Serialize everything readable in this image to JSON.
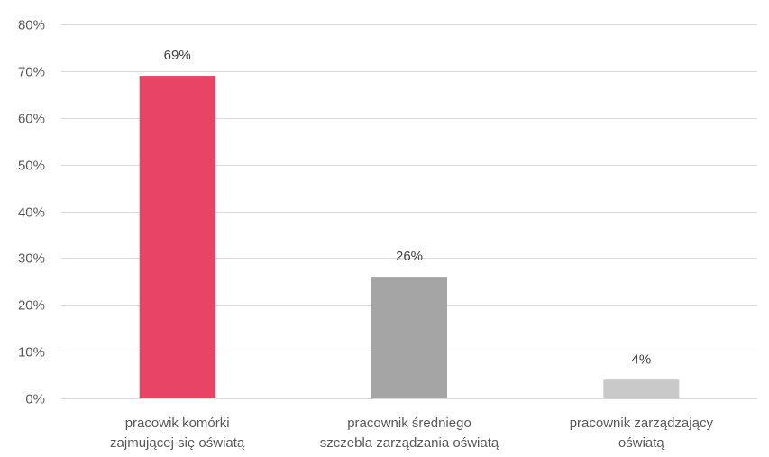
{
  "chart_data": {
    "type": "bar",
    "title": "",
    "xlabel": "",
    "ylabel": "",
    "categories": [
      [
        "pracowik komórki",
        "zajmującej się oświatą"
      ],
      [
        "pracownik średniego",
        "szczebla zarządzania oświatą"
      ],
      [
        "pracownik zarządzający",
        "oświatą"
      ]
    ],
    "values": [
      69,
      26,
      4
    ],
    "data_labels": [
      "69%",
      "26%",
      "4%"
    ],
    "colors": [
      "#e84466",
      "#a5a5a5",
      "#c9c9c9"
    ],
    "ylim": [
      0,
      80
    ],
    "y_ticks": [
      0,
      10,
      20,
      30,
      40,
      50,
      60,
      70,
      80
    ],
    "y_tick_labels": [
      "0%",
      "10%",
      "20%",
      "30%",
      "40%",
      "50%",
      "60%",
      "70%",
      "80%"
    ],
    "grid": true,
    "legend": "none"
  }
}
